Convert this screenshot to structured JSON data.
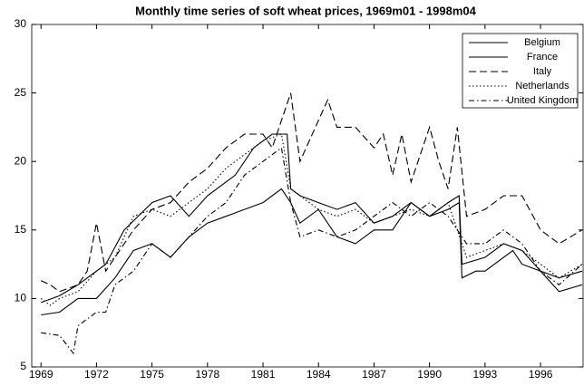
{
  "chart_data": {
    "type": "line",
    "title": "Monthly time series of soft wheat prices, 1969m01 - 1998m04",
    "xlim": [
      1968.5,
      1998.3
    ],
    "ylim": [
      5,
      30
    ],
    "xticks": [
      1969,
      1972,
      1975,
      1978,
      1981,
      1984,
      1987,
      1990,
      1993,
      1996
    ],
    "yticks": [
      5,
      10,
      15,
      20,
      25,
      30
    ],
    "legend": "top-right",
    "series": [
      {
        "name": "Belgium",
        "color": "#000000",
        "dash": "none",
        "x": [
          1969,
          1970,
          1971,
          1972.5,
          1973.5,
          1975,
          1976,
          1977,
          1978,
          1979.5,
          1980.5,
          1981.5,
          1982.3,
          1982.5,
          1983,
          1984,
          1985,
          1986,
          1987,
          1988,
          1989,
          1990,
          1991,
          1991.6,
          1991.75,
          1993,
          1994,
          1995,
          1996,
          1997,
          1998.25
        ],
        "values": [
          9.7,
          10.2,
          11,
          12.5,
          15,
          17,
          17.5,
          16,
          17.5,
          19,
          21,
          22,
          22,
          18,
          17.5,
          17,
          16.5,
          17,
          15.5,
          16,
          17,
          16,
          17,
          17.5,
          12.5,
          13,
          14,
          13.5,
          12,
          11.5,
          12
        ]
      },
      {
        "name": "France",
        "color": "#000000",
        "dash": "none",
        "x": [
          1969,
          1970,
          1971,
          1972,
          1973,
          1974,
          1975,
          1976,
          1977,
          1978,
          1979,
          1980,
          1981,
          1982,
          1982.5,
          1983,
          1984,
          1985,
          1986,
          1987,
          1988,
          1989,
          1990,
          1991,
          1991.6,
          1991.75,
          1992.5,
          1993,
          1994.5,
          1995,
          1996,
          1997,
          1998.25
        ],
        "values": [
          8.8,
          9,
          10,
          10,
          11.5,
          13.5,
          14,
          13,
          14.5,
          15.5,
          16,
          16.5,
          17,
          18,
          17,
          15.5,
          16.5,
          14.5,
          14,
          15,
          15,
          17,
          16,
          16.5,
          17,
          11.5,
          12,
          12,
          13.5,
          12.5,
          12,
          10.5,
          11
        ]
      },
      {
        "name": "Italy",
        "color": "#000000",
        "dash": "8,4",
        "x": [
          1969,
          1969.5,
          1970,
          1971,
          1971.5,
          1972,
          1972.5,
          1973,
          1974,
          1975,
          1976,
          1977,
          1978,
          1979,
          1980,
          1981,
          1981.5,
          1982.5,
          1983,
          1984.5,
          1985,
          1986,
          1987,
          1987.5,
          1988,
          1988.5,
          1989,
          1990,
          1990.5,
          1991,
          1991.5,
          1992,
          1993,
          1994,
          1995,
          1996,
          1997,
          1998.25
        ],
        "values": [
          11.3,
          11,
          10.5,
          11,
          12,
          15.5,
          12,
          13,
          15,
          16.5,
          17,
          18.5,
          19.5,
          21,
          22,
          22,
          21,
          25,
          20,
          24.5,
          22.5,
          22.5,
          21,
          22,
          19,
          22,
          18.5,
          22.5,
          20,
          18,
          22.5,
          16,
          16.5,
          17.5,
          17.5,
          15,
          14,
          15
        ]
      },
      {
        "name": "Netherlands",
        "color": "#000000",
        "dash": "1.5,2.5",
        "x": [
          1969,
          1969.5,
          1970,
          1971,
          1972,
          1973,
          1974,
          1975,
          1976,
          1977,
          1978,
          1979,
          1980,
          1981,
          1982,
          1982.5,
          1983.5,
          1984,
          1985,
          1986,
          1987,
          1988,
          1989,
          1990,
          1991,
          1992,
          1993,
          1994,
          1995,
          1996,
          1997,
          1998.25
        ],
        "values": [
          10,
          9.5,
          10,
          10.5,
          12,
          13,
          16,
          16.5,
          16,
          17,
          18,
          19.5,
          20.5,
          21.5,
          22,
          18,
          17,
          16.5,
          16,
          16.5,
          15.5,
          16,
          16.5,
          16,
          17,
          13,
          13.5,
          14,
          13.5,
          12.5,
          11.5,
          12.5
        ]
      },
      {
        "name": "United Kingdom",
        "color": "#000000",
        "dash": "6,3,1.5,3",
        "x": [
          1969,
          1970,
          1970.75,
          1971,
          1972,
          1972.5,
          1973,
          1974,
          1975,
          1976,
          1977,
          1978,
          1979,
          1980,
          1981,
          1982,
          1982.5,
          1983,
          1984,
          1985,
          1986,
          1987,
          1988,
          1989,
          1990,
          1991,
          1992,
          1993,
          1994,
          1995,
          1996,
          1997,
          1998.25
        ],
        "values": [
          7.5,
          7.3,
          6,
          8,
          9,
          9,
          11,
          12,
          14,
          13,
          14.5,
          16,
          17,
          19,
          20,
          21,
          17,
          14.5,
          15,
          14.5,
          15,
          16,
          17,
          16,
          17,
          16,
          14,
          14,
          15,
          14,
          12,
          11,
          12.5
        ]
      }
    ]
  }
}
